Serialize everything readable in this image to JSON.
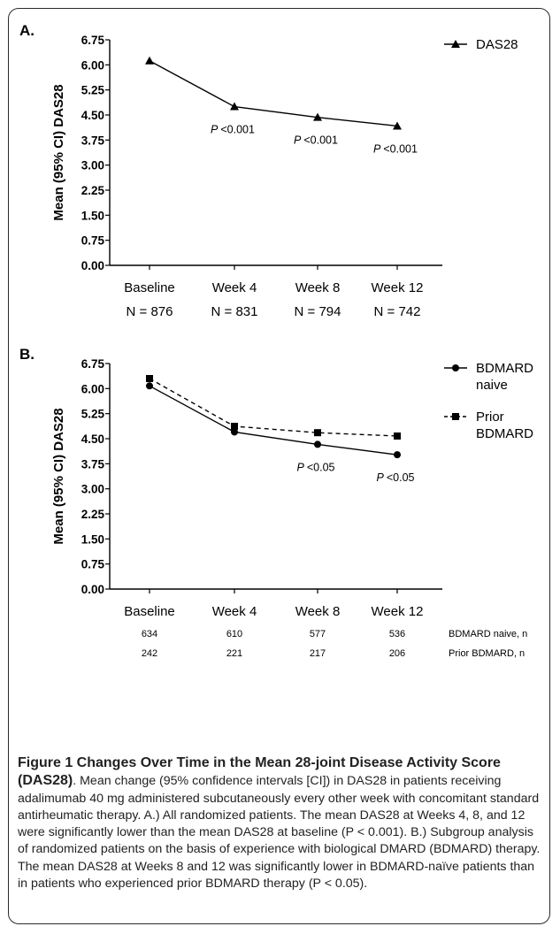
{
  "caption": {
    "title": "Figure 1 Changes Over Time in the Mean 28-joint Disease Activity Score (DAS28)",
    "text": ". Mean change (95% confidence intervals [CI]) in DAS28 in patients receiving adalimumab 40 mg administered subcutaneously every other week with concomitant standard antirheumatic therapy. A.) All randomized patients. The mean DAS28 at Weeks 4, 8, and 12 were significantly lower than the mean DAS28 at baseline (P < 0.001). B.) Subgroup analysis of randomized patients on the basis of experience with biological DMARD (BDMARD) therapy. The mean DAS28 at Weeks 8 and 12 was significantly lower in BDMARD-naïve patients than in patients who experienced prior BDMARD therapy (P < 0.05)."
  },
  "chart_data": [
    {
      "type": "line",
      "panel_label": "A.",
      "ylabel": "Mean (95% CI) DAS28",
      "ylim": [
        0,
        6.75
      ],
      "yticks": [
        "0.00",
        "0.75",
        "1.50",
        "2.25",
        "3.00",
        "3.75",
        "4.50",
        "5.25",
        "6.00",
        "6.75"
      ],
      "categories": [
        "Baseline",
        "Week 4",
        "Week 8",
        "Week 12"
      ],
      "n_labels": [
        "N = 876",
        "N = 831",
        "N = 794",
        "N = 742"
      ],
      "series": [
        {
          "name": "DAS28",
          "marker": "triangle",
          "dashed": false,
          "values": [
            6.12,
            4.75,
            4.43,
            4.17
          ]
        }
      ],
      "annotations": [
        {
          "category": 1,
          "text": "<0.001"
        },
        {
          "category": 2,
          "text": "<0.001"
        },
        {
          "category": 3,
          "text": "<0.001"
        }
      ],
      "p_prefix": "P",
      "legend_position": "top-right",
      "grid": false
    },
    {
      "type": "line",
      "panel_label": "B.",
      "ylabel": "Mean (95% CI) DAS28",
      "ylim": [
        0,
        6.75
      ],
      "yticks": [
        "0.00",
        "0.75",
        "1.50",
        "2.25",
        "3.00",
        "3.75",
        "4.50",
        "5.25",
        "6.00",
        "6.75"
      ],
      "categories": [
        "Baseline",
        "Week 4",
        "Week 8",
        "Week 12"
      ],
      "series": [
        {
          "name": "BDMARD naive",
          "legend_lines": [
            "BDMARD",
            "naive"
          ],
          "marker": "circle",
          "dashed": false,
          "values": [
            6.08,
            4.7,
            4.33,
            4.02
          ]
        },
        {
          "name": "Prior BDMARD",
          "legend_lines": [
            "Prior",
            "BDMARD"
          ],
          "marker": "square",
          "dashed": true,
          "values": [
            6.3,
            4.87,
            4.68,
            4.58
          ]
        }
      ],
      "annotations": [
        {
          "category": 2,
          "text": "<0.05"
        },
        {
          "category": 3,
          "text": "<0.05"
        }
      ],
      "p_prefix": "P",
      "n_table": [
        {
          "label": "BDMARD naive, n",
          "values": [
            "634",
            "610",
            "577",
            "536"
          ]
        },
        {
          "label": "Prior BDMARD, n",
          "values": [
            "242",
            "221",
            "217",
            "206"
          ]
        }
      ],
      "legend_position": "top-right",
      "grid": false
    }
  ]
}
